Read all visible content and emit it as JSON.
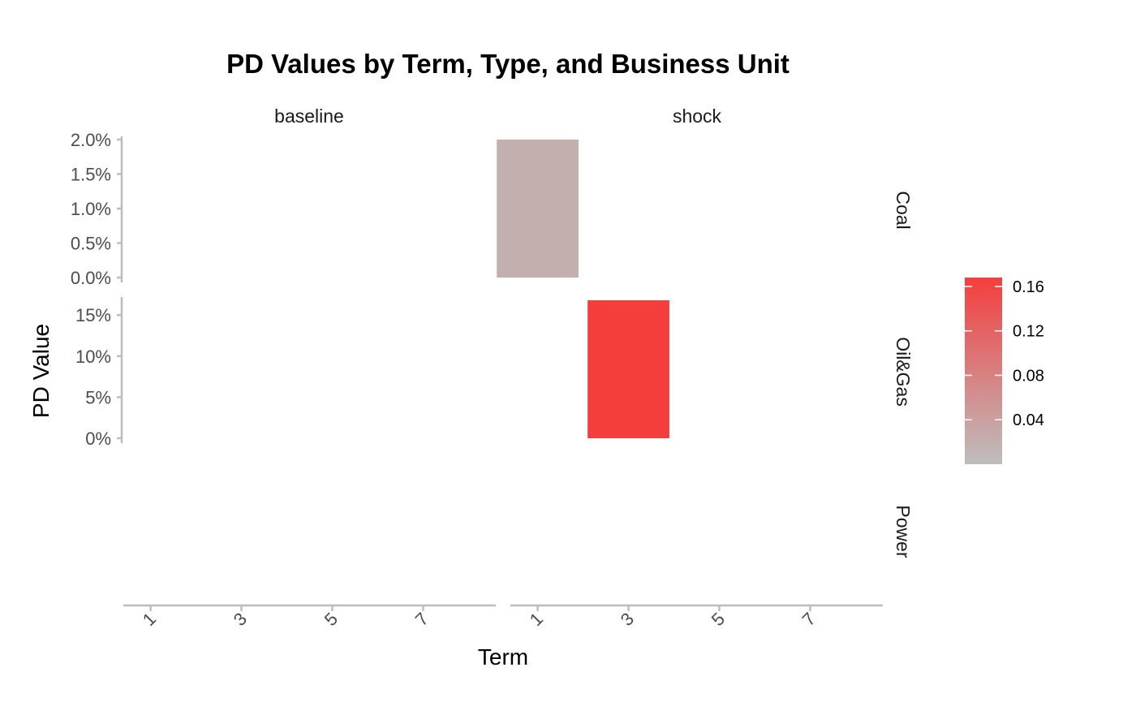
{
  "chart_data": {
    "type": "bar",
    "title": "PD Values by Term, Type, and Business Unit",
    "xlabel": "Term",
    "ylabel": "PD Value",
    "facet_columns": [
      "baseline",
      "shock"
    ],
    "facet_rows": [
      "Coal",
      "Oil&Gas",
      "Power"
    ],
    "x_ticks": [
      "1",
      "3",
      "5",
      "7"
    ],
    "xlim": [
      0.4,
      8.6
    ],
    "bar_width": 1.8,
    "rows": [
      {
        "name": "Coal",
        "ylim": [
          0,
          0.02
        ],
        "y_ticks": [
          0,
          0.005,
          0.01,
          0.015,
          0.02
        ],
        "y_tick_labels": [
          "0.0%",
          "0.5%",
          "1.0%",
          "1.5%",
          "2.0%"
        ]
      },
      {
        "name": "Oil&Gas",
        "ylim": [
          0,
          0.168
        ],
        "y_ticks": [
          0,
          0.05,
          0.1,
          0.15
        ],
        "y_tick_labels": [
          "0%",
          "5%",
          "10%",
          "15%"
        ]
      },
      {
        "name": "Power",
        "ylim": [
          0,
          1
        ],
        "y_ticks": [],
        "y_tick_labels": []
      }
    ],
    "bars": [
      {
        "type": "shock",
        "business_unit": "Coal",
        "term": 1,
        "value": 0.02
      },
      {
        "type": "shock",
        "business_unit": "Oil&Gas",
        "term": 3,
        "value": 0.168
      }
    ],
    "legend": {
      "placement": "right",
      "color_low": "#bebebe",
      "color_high": "#f43e3e",
      "range": [
        0.0,
        0.168
      ],
      "ticks": [
        0.04,
        0.08,
        0.12,
        0.16
      ],
      "tick_labels": [
        "0.04",
        "0.08",
        "0.12",
        "0.16"
      ]
    },
    "grid": false
  }
}
